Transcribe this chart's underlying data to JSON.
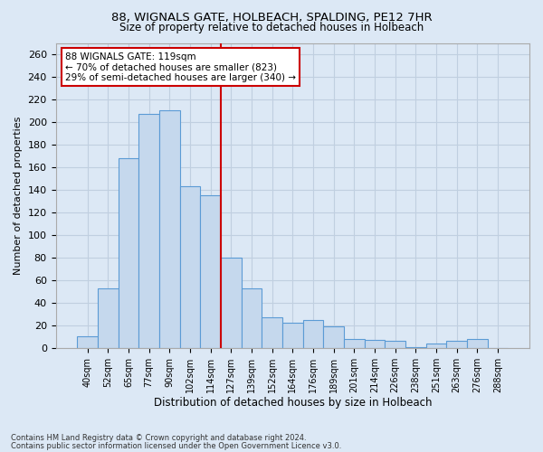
{
  "title1": "88, WIGNALS GATE, HOLBEACH, SPALDING, PE12 7HR",
  "title2": "Size of property relative to detached houses in Holbeach",
  "xlabel": "Distribution of detached houses by size in Holbeach",
  "ylabel": "Number of detached properties",
  "footnote1": "Contains HM Land Registry data © Crown copyright and database right 2024.",
  "footnote2": "Contains public sector information licensed under the Open Government Licence v3.0.",
  "bar_labels": [
    "40sqm",
    "52sqm",
    "65sqm",
    "77sqm",
    "90sqm",
    "102sqm",
    "114sqm",
    "127sqm",
    "139sqm",
    "152sqm",
    "164sqm",
    "176sqm",
    "189sqm",
    "201sqm",
    "214sqm",
    "226sqm",
    "238sqm",
    "251sqm",
    "263sqm",
    "276sqm",
    "288sqm"
  ],
  "bar_values": [
    10,
    53,
    168,
    207,
    210,
    143,
    135,
    80,
    53,
    27,
    22,
    25,
    19,
    8,
    7,
    6,
    1,
    4,
    6,
    8,
    0
  ],
  "bar_color": "#c5d8ed",
  "bar_edge_color": "#5b9bd5",
  "ref_line_bin": 6.5,
  "annotation_title": "88 WIGNALS GATE: 119sqm",
  "annotation_line1": "← 70% of detached houses are smaller (823)",
  "annotation_line2": "29% of semi-detached houses are larger (340) →",
  "annotation_box_color": "#ffffff",
  "annotation_box_edge": "#cc0000",
  "ref_line_color": "#cc0000",
  "grid_color": "#c0cfe0",
  "bg_color": "#dce8f5",
  "plot_bg_color": "#dce8f5",
  "ylim": [
    0,
    270
  ],
  "yticks": [
    0,
    20,
    40,
    60,
    80,
    100,
    120,
    140,
    160,
    180,
    200,
    220,
    240,
    260
  ]
}
